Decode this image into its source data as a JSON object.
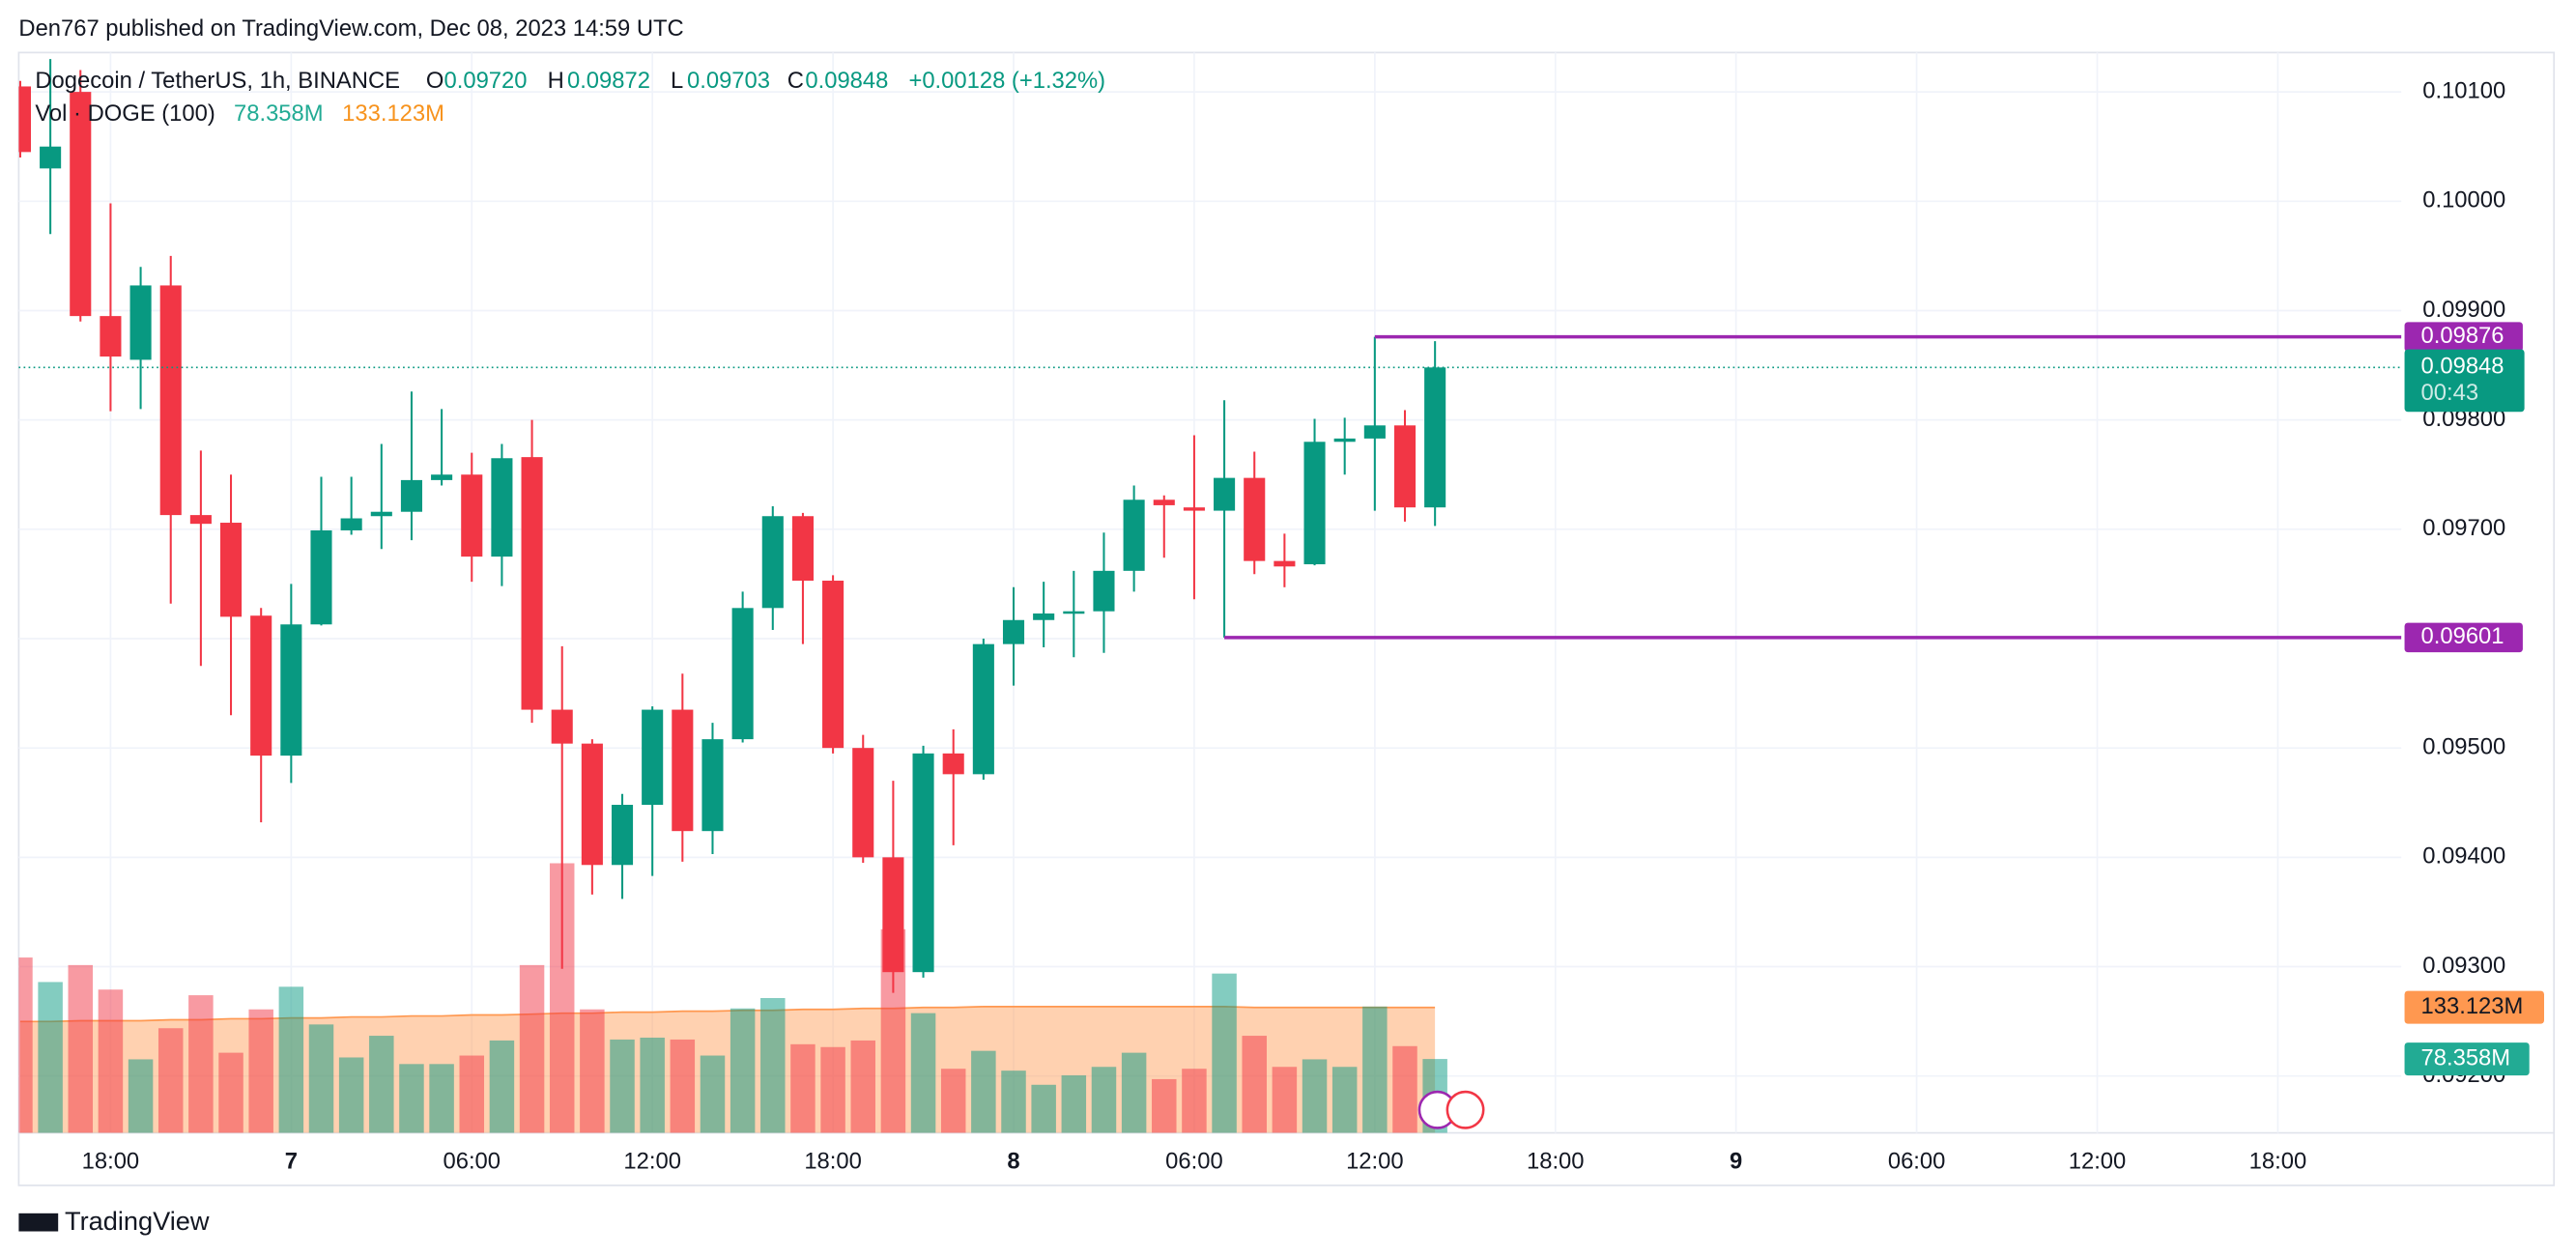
{
  "chart_data": {
    "type": "candlestick",
    "publisher": "Den767 published on TradingView.com, Dec 08, 2023 14:59 UTC",
    "symbol": "Dogecoin / TetherUS, 1h, BINANCE",
    "legend": {
      "o_label": "O",
      "o": "0.09720",
      "h_label": "H",
      "h": "0.09872",
      "l_label": "L",
      "l": "0.09703",
      "c_label": "C",
      "c": "0.09848",
      "change": "+0.00128 (+1.32%)"
    },
    "volume_title": "Vol · DOGE (100)",
    "volume_value_label": "78.358M",
    "volume_ma_label": "133.123M",
    "footer": "TradingView",
    "up_color": "#089981",
    "down_color": "#f23645",
    "ma_color": "#ff9850",
    "level_color": "#9c27b0",
    "open": [
      0.10105,
      0.1003,
      0.101,
      0.09895,
      0.09855,
      0.09923,
      0.09713,
      0.09706,
      0.09621,
      0.09493,
      0.09613,
      0.09699,
      0.09712,
      0.09716,
      0.09745,
      0.0975,
      0.09675,
      0.09766,
      0.09535,
      0.09504,
      0.09393,
      0.09448,
      0.09535,
      0.09424,
      0.09508,
      0.09628,
      0.09712,
      0.09653,
      0.095,
      0.094,
      0.09295,
      0.09495,
      0.09476,
      0.09595,
      0.09617,
      0.09623,
      0.09625,
      0.09662,
      0.09727,
      0.0972,
      0.09717,
      0.09747,
      0.09671,
      0.09668,
      0.0978,
      0.09783,
      0.09795,
      0.0972
    ],
    "high": [
      0.1011,
      0.1013,
      0.1012,
      0.09998,
      0.0994,
      0.0995,
      0.09772,
      0.0975,
      0.09628,
      0.0965,
      0.09748,
      0.09748,
      0.09778,
      0.09826,
      0.0981,
      0.0977,
      0.09778,
      0.098,
      0.09593,
      0.09508,
      0.09458,
      0.09538,
      0.09568,
      0.09523,
      0.09643,
      0.09721,
      0.09715,
      0.09658,
      0.09512,
      0.0947,
      0.09502,
      0.09517,
      0.096,
      0.09647,
      0.09652,
      0.09662,
      0.09697,
      0.0974,
      0.09731,
      0.09786,
      0.09818,
      0.09771,
      0.09696,
      0.09801,
      0.09802,
      0.09876,
      0.09809,
      0.09872
    ],
    "low": [
      0.1004,
      0.0997,
      0.0989,
      0.09808,
      0.0981,
      0.09632,
      0.09575,
      0.0953,
      0.09432,
      0.09468,
      0.09612,
      0.09695,
      0.09682,
      0.0969,
      0.0974,
      0.09652,
      0.09648,
      0.09523,
      0.09298,
      0.09366,
      0.09362,
      0.09383,
      0.09396,
      0.09403,
      0.09505,
      0.09608,
      0.09595,
      0.09495,
      0.09395,
      0.09276,
      0.0929,
      0.09411,
      0.09471,
      0.09557,
      0.09592,
      0.09583,
      0.09587,
      0.09643,
      0.09674,
      0.09636,
      0.09601,
      0.09659,
      0.09647,
      0.09667,
      0.0975,
      0.09717,
      0.09707,
      0.09703
    ],
    "close": [
      0.10045,
      0.1005,
      0.09895,
      0.09858,
      0.09923,
      0.09713,
      0.09705,
      0.0962,
      0.09493,
      0.09613,
      0.09699,
      0.0971,
      0.09716,
      0.09745,
      0.0975,
      0.09675,
      0.09765,
      0.09535,
      0.09504,
      0.09393,
      0.09448,
      0.09535,
      0.09424,
      0.09508,
      0.09628,
      0.09712,
      0.09653,
      0.095,
      0.094,
      0.09295,
      0.09495,
      0.09476,
      0.09595,
      0.09617,
      0.09623,
      0.09625,
      0.09662,
      0.09727,
      0.09722,
      0.09717,
      0.09747,
      0.09671,
      0.09666,
      0.0978,
      0.09783,
      0.09795,
      0.0972,
      0.09848
    ],
    "volume": [
      186,
      160,
      178,
      152,
      78,
      111,
      146,
      85,
      131,
      155,
      115,
      80,
      103,
      73,
      73,
      82,
      98,
      178,
      286,
      131,
      99,
      101,
      99,
      82,
      132,
      143,
      94,
      91,
      98,
      216,
      127,
      68,
      87,
      66,
      51,
      61,
      70,
      85,
      57,
      68,
      169,
      103,
      70,
      78,
      70,
      134,
      92,
      78.358
    ],
    "volume_ma": [
      118,
      118,
      119,
      119,
      119,
      120,
      120,
      121,
      121,
      122,
      122,
      123,
      123,
      124,
      124,
      125,
      125,
      126,
      127,
      127,
      128,
      128,
      129,
      129,
      130,
      130,
      131,
      131,
      132,
      132,
      133,
      133,
      134,
      134,
      134,
      134,
      134,
      134,
      134,
      134,
      134,
      133,
      133,
      133,
      133,
      133,
      133,
      133.123
    ],
    "xlim": [
      -0.05,
      79.1
    ],
    "xticks": [
      {
        "value": 3,
        "label": "18:00"
      },
      {
        "value": 9,
        "label": "7"
      },
      {
        "value": 15,
        "label": "06:00"
      },
      {
        "value": 21,
        "label": "12:00"
      },
      {
        "value": 27,
        "label": "18:00"
      },
      {
        "value": 33,
        "label": "8"
      },
      {
        "value": 39,
        "label": "06:00"
      },
      {
        "value": 45,
        "label": "12:00"
      },
      {
        "value": 51,
        "label": "18:00"
      },
      {
        "value": 57,
        "label": "9"
      },
      {
        "value": 63,
        "label": "06:00"
      },
      {
        "value": 69,
        "label": "12:00"
      },
      {
        "value": 75,
        "label": "18:00"
      }
    ],
    "ylim": [
      0.09148,
      0.10136
    ],
    "yticks": [
      {
        "value": 0.101,
        "label": "0.10100"
      },
      {
        "value": 0.1,
        "label": "0.10000"
      },
      {
        "value": 0.099,
        "label": "0.09900"
      },
      {
        "value": 0.098,
        "label": "0.09800"
      },
      {
        "value": 0.097,
        "label": "0.09700"
      },
      {
        "value": 0.096,
        "label": "0.09600"
      },
      {
        "value": 0.095,
        "label": "0.09500"
      },
      {
        "value": 0.094,
        "label": "0.09400"
      },
      {
        "value": 0.093,
        "label": "0.09300"
      },
      {
        "value": 0.092,
        "label": "0.09200"
      }
    ],
    "y2lim": [
      0,
      1146
    ],
    "grid": true,
    "levels": [
      {
        "value": 0.09876,
        "label": "0.09876",
        "start": 45
      },
      {
        "value": 0.09601,
        "label": "0.09601",
        "start": 40
      }
    ],
    "last": {
      "value": 0.09848,
      "label": "0.09848",
      "countdown": "00:43"
    }
  }
}
